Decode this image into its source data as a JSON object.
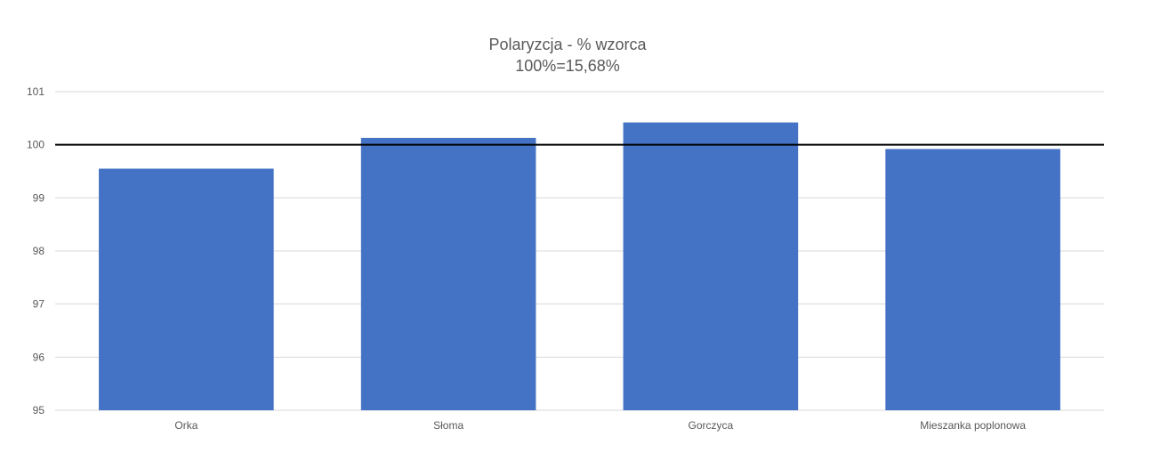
{
  "chart_data": {
    "type": "bar",
    "title": "Polaryzcja - % wzorca",
    "subtitle": "100%=15,68%",
    "categories": [
      "Orka",
      "Słoma",
      "Gorczyca",
      "Mieszanka poplonowa"
    ],
    "series": [
      {
        "values": [
          99.55,
          100.13,
          100.42,
          99.92
        ],
        "color": "#4472C4"
      }
    ],
    "ylim": [
      95,
      101
    ],
    "yticks": [
      "95",
      "96",
      "97",
      "98",
      "99",
      "100",
      "101"
    ],
    "reference_line": {
      "value": 100,
      "color": "#000000"
    },
    "grid": true,
    "grid_color": "#D9D9D9",
    "legend": "none"
  }
}
